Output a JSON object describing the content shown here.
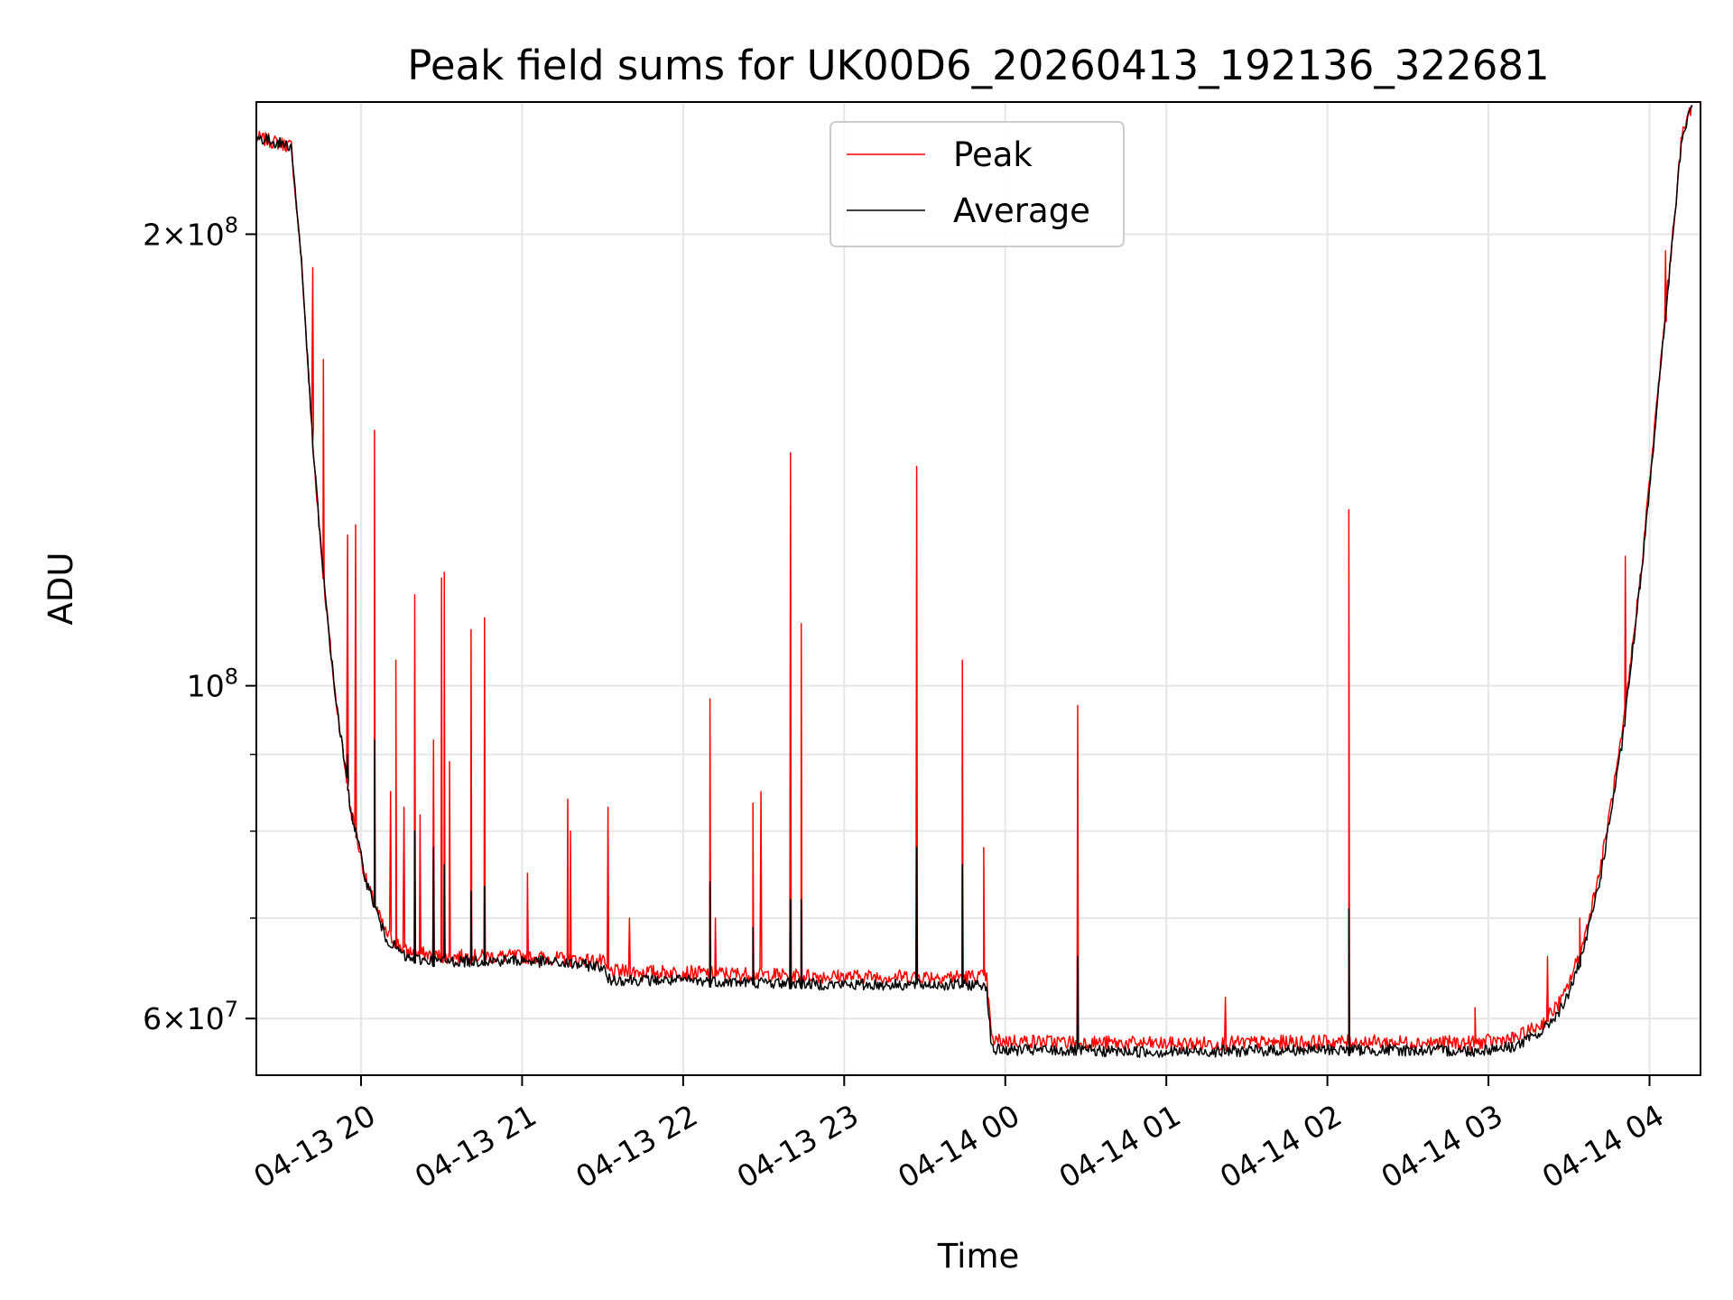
{
  "chart_data": {
    "type": "line",
    "title": "Peak field sums for UK00D6_20260413_192136_322681",
    "xlabel": "Time",
    "ylabel": "ADU",
    "y_scale": "log",
    "ylim": [
      55000000,
      245000000
    ],
    "xlim": [
      "2026-04-13 19:21",
      "2026-04-14 04:19"
    ],
    "grid": true,
    "legend_position": "top-center",
    "x_ticks": [
      {
        "t": "2026-04-13 20:00",
        "label": "04-13 20"
      },
      {
        "t": "2026-04-13 21:00",
        "label": "04-13 21"
      },
      {
        "t": "2026-04-13 22:00",
        "label": "04-13 22"
      },
      {
        "t": "2026-04-13 23:00",
        "label": "04-13 23"
      },
      {
        "t": "2026-04-14 00:00",
        "label": "04-14 00"
      },
      {
        "t": "2026-04-14 01:00",
        "label": "04-14 01"
      },
      {
        "t": "2026-04-14 02:00",
        "label": "04-14 02"
      },
      {
        "t": "2026-04-14 03:00",
        "label": "04-14 03"
      },
      {
        "t": "2026-04-14 04:00",
        "label": "04-14 04"
      }
    ],
    "y_major_ticks": [
      {
        "v": 60000000,
        "mant": "6",
        "times": "×10",
        "exp": "7"
      },
      {
        "v": 100000000,
        "mant": "",
        "times": "10",
        "exp": "8"
      },
      {
        "v": 200000000,
        "mant": "2",
        "times": "×10",
        "exp": "8"
      }
    ],
    "y_minor_gridlines": [
      70000000,
      80000000,
      90000000
    ],
    "series": [
      {
        "name": "Peak",
        "color": "#ff0000",
        "baseline": [
          [
            "2026-04-13 19:21",
            232000000
          ],
          [
            "2026-04-13 19:34",
            229000000
          ],
          [
            "2026-04-13 19:38",
            190000000
          ],
          [
            "2026-04-13 19:42",
            145000000
          ],
          [
            "2026-04-13 19:46",
            118000000
          ],
          [
            "2026-04-13 19:50",
            100000000
          ],
          [
            "2026-04-13 19:56",
            83000000
          ],
          [
            "2026-04-13 20:02",
            74000000
          ],
          [
            "2026-04-13 20:09",
            68500000
          ],
          [
            "2026-04-13 20:17",
            66500000
          ],
          [
            "2026-04-13 20:30",
            66000000
          ],
          [
            "2026-04-13 21:00",
            66000000
          ],
          [
            "2026-04-13 21:30",
            65500000
          ],
          [
            "2026-04-13 21:32",
            64500000
          ],
          [
            "2026-04-13 22:00",
            64400000
          ],
          [
            "2026-04-13 23:00",
            64000000
          ],
          [
            "2026-04-13 23:53",
            64000000
          ],
          [
            "2026-04-13 23:55",
            58000000
          ],
          [
            "2026-04-14 01:00",
            57700000
          ],
          [
            "2026-04-14 02:00",
            57900000
          ],
          [
            "2026-04-14 02:55",
            57800000
          ],
          [
            "2026-04-14 03:10",
            58200000
          ],
          [
            "2026-04-14 03:20",
            59500000
          ],
          [
            "2026-04-14 03:28",
            62000000
          ],
          [
            "2026-04-14 03:35",
            67000000
          ],
          [
            "2026-04-14 03:42",
            76000000
          ],
          [
            "2026-04-14 03:50",
            93000000
          ],
          [
            "2026-04-14 03:57",
            120000000
          ],
          [
            "2026-04-14 04:05",
            170000000
          ],
          [
            "2026-04-14 04:12",
            232000000
          ],
          [
            "2026-04-14 04:16",
            245000000
          ]
        ],
        "spikes": [
          [
            "2026-04-13 19:42",
            190000000
          ],
          [
            "2026-04-13 19:46",
            165000000
          ],
          [
            "2026-04-13 19:55",
            126000000
          ],
          [
            "2026-04-13 19:58",
            128000000
          ],
          [
            "2026-04-13 20:05",
            148000000
          ],
          [
            "2026-04-13 20:11",
            85000000
          ],
          [
            "2026-04-13 20:13",
            104000000
          ],
          [
            "2026-04-13 20:16",
            83000000
          ],
          [
            "2026-04-13 20:20",
            115000000
          ],
          [
            "2026-04-13 20:22",
            82000000
          ],
          [
            "2026-04-13 20:27",
            92000000
          ],
          [
            "2026-04-13 20:30",
            118000000
          ],
          [
            "2026-04-13 20:31",
            119000000
          ],
          [
            "2026-04-13 20:33",
            89000000
          ],
          [
            "2026-04-13 20:41",
            109000000
          ],
          [
            "2026-04-13 20:46",
            111000000
          ],
          [
            "2026-04-13 21:02",
            75000000
          ],
          [
            "2026-04-13 21:17",
            84000000
          ],
          [
            "2026-04-13 21:18",
            80000000
          ],
          [
            "2026-04-13 21:32",
            83000000
          ],
          [
            "2026-04-13 21:40",
            70000000
          ],
          [
            "2026-04-13 22:10",
            98000000
          ],
          [
            "2026-04-13 22:12",
            70000000
          ],
          [
            "2026-04-13 22:26",
            83500000
          ],
          [
            "2026-04-13 22:29",
            85000000
          ],
          [
            "2026-04-13 22:40",
            143000000
          ],
          [
            "2026-04-13 22:44",
            110000000
          ],
          [
            "2026-04-13 23:27",
            140000000
          ],
          [
            "2026-04-13 23:44",
            104000000
          ],
          [
            "2026-04-13 23:52",
            78000000
          ],
          [
            "2026-04-14 00:27",
            97000000
          ],
          [
            "2026-04-14 01:22",
            62000000
          ],
          [
            "2026-04-14 02:08",
            131000000
          ],
          [
            "2026-04-14 02:55",
            61000000
          ],
          [
            "2026-04-14 03:22",
            66000000
          ],
          [
            "2026-04-14 03:34",
            70000000
          ],
          [
            "2026-04-14 03:51",
            122000000
          ],
          [
            "2026-04-14 04:06",
            195000000
          ]
        ]
      },
      {
        "name": "Average",
        "color": "#000000",
        "baseline": [
          [
            "2026-04-13 19:21",
            232000000
          ],
          [
            "2026-04-13 19:34",
            229000000
          ],
          [
            "2026-04-13 19:38",
            190000000
          ],
          [
            "2026-04-13 19:42",
            145000000
          ],
          [
            "2026-04-13 19:46",
            118000000
          ],
          [
            "2026-04-13 19:50",
            100000000
          ],
          [
            "2026-04-13 19:56",
            83000000
          ],
          [
            "2026-04-13 20:02",
            74000000
          ],
          [
            "2026-04-13 20:09",
            68000000
          ],
          [
            "2026-04-13 20:17",
            65800000
          ],
          [
            "2026-04-13 20:30",
            65500000
          ],
          [
            "2026-04-13 21:00",
            65600000
          ],
          [
            "2026-04-13 21:30",
            65000000
          ],
          [
            "2026-04-13 21:32",
            63700000
          ],
          [
            "2026-04-13 22:00",
            63600000
          ],
          [
            "2026-04-13 23:00",
            63200000
          ],
          [
            "2026-04-13 23:53",
            63200000
          ],
          [
            "2026-04-13 23:55",
            57200000
          ],
          [
            "2026-04-14 01:00",
            57000000
          ],
          [
            "2026-04-14 02:00",
            57200000
          ],
          [
            "2026-04-14 02:55",
            57100000
          ],
          [
            "2026-04-14 03:10",
            57500000
          ],
          [
            "2026-04-14 03:20",
            58800000
          ],
          [
            "2026-04-14 03:28",
            61200000
          ],
          [
            "2026-04-14 03:35",
            66000000
          ],
          [
            "2026-04-14 03:42",
            75000000
          ],
          [
            "2026-04-14 03:50",
            92000000
          ],
          [
            "2026-04-14 03:57",
            119000000
          ],
          [
            "2026-04-14 04:05",
            169000000
          ],
          [
            "2026-04-14 04:12",
            231000000
          ],
          [
            "2026-04-14 04:16",
            245000000
          ]
        ],
        "spikes": [
          [
            "2026-04-13 19:55",
            90000000
          ],
          [
            "2026-04-13 20:05",
            92000000
          ],
          [
            "2026-04-13 20:20",
            80000000
          ],
          [
            "2026-04-13 20:27",
            78000000
          ],
          [
            "2026-04-13 20:31",
            76000000
          ],
          [
            "2026-04-13 20:41",
            73000000
          ],
          [
            "2026-04-13 20:46",
            73500000
          ],
          [
            "2026-04-13 22:10",
            74000000
          ],
          [
            "2026-04-13 22:26",
            69000000
          ],
          [
            "2026-04-13 22:40",
            72000000
          ],
          [
            "2026-04-13 22:44",
            72000000
          ],
          [
            "2026-04-13 23:27",
            78000000
          ],
          [
            "2026-04-13 23:44",
            76000000
          ],
          [
            "2026-04-14 00:27",
            66000000
          ],
          [
            "2026-04-14 02:08",
            71000000
          ],
          [
            "2026-04-14 03:34",
            66000000
          ]
        ]
      }
    ]
  }
}
